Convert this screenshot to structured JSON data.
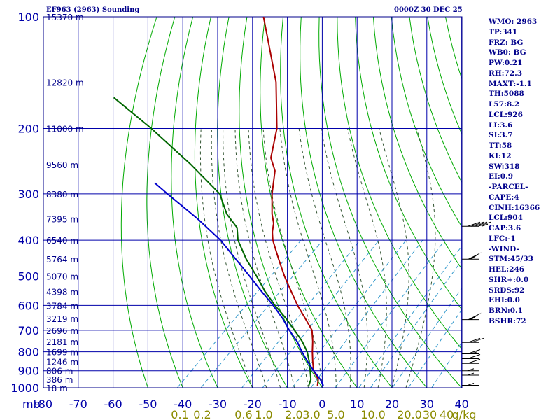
{
  "header": {
    "station": "EF963 (2963) Sounding",
    "time": "0000Z 30 DEC 25"
  },
  "indices": [
    "WMO: 2963",
    "TP:341",
    "FRZ: BG",
    "WB0: BG",
    "PW:0.21",
    "RH:72.3",
    "MAXT:-1.1",
    "TH:5088",
    "L57:8.2",
    "LCL:926",
    "LI:3.6",
    "SI:3.7",
    "TT:58",
    "KI:12",
    "SW:318",
    "EI:0.9",
    "-PARCEL-",
    "CAPE:4",
    "CINH:16366",
    "LCL:904",
    "CAP:3.6",
    "LFC:-1",
    "-WIND-",
    "STM:45/33",
    "HEL:246",
    "SHR+:0.0",
    "SRDS:92",
    "EHI:0.0",
    "BRN:0.1",
    "BSHR:72"
  ],
  "colors": {
    "frame": "#00008b",
    "grid": "#0000aa",
    "dry_adiabat": "#00aa00",
    "moist_adiabat": "#335533",
    "mixing_ratio": "#3399cc",
    "temperature": "#aa0000",
    "dewpoint": "#006600",
    "parcel": "#0000cc",
    "axis_text": "#0000aa",
    "mixing_label_text": "#8b8b00",
    "height_text": "#00008b"
  },
  "chart_data": {
    "type": "line",
    "title": "EF963 (2963) Sounding",
    "subtitle": "0000Z 30 DEC 25",
    "x_axis": {
      "unit_label": "mb",
      "ticks": [
        -80,
        -70,
        -60,
        -50,
        -40,
        -30,
        -20,
        -10,
        0,
        10,
        20,
        30,
        40
      ],
      "range": [
        -80,
        40
      ]
    },
    "y_axis": {
      "scale": "log",
      "ticks": [
        100,
        200,
        300,
        400,
        500,
        600,
        700,
        800,
        900,
        1000
      ],
      "range": [
        100,
        1000
      ]
    },
    "heights": [
      {
        "p": 100,
        "label": "15370 m"
      },
      {
        "p": 150,
        "label": "12820 m"
      },
      {
        "p": 200,
        "label": "11000 m"
      },
      {
        "p": 250,
        "label": "9560 m"
      },
      {
        "p": 300,
        "label": "8380 m"
      },
      {
        "p": 350,
        "label": "7395 m"
      },
      {
        "p": 400,
        "label": "6540 m"
      },
      {
        "p": 450,
        "label": "5764 m"
      },
      {
        "p": 500,
        "label": "5070 m"
      },
      {
        "p": 550,
        "label": "4398 m"
      },
      {
        "p": 600,
        "label": "3784 m"
      },
      {
        "p": 650,
        "label": "3219 m"
      },
      {
        "p": 700,
        "label": "2696 m"
      },
      {
        "p": 750,
        "label": "2181 m"
      },
      {
        "p": 800,
        "label": "1699 m"
      },
      {
        "p": 850,
        "label": "1246 m"
      },
      {
        "p": 900,
        "label": "806 m"
      },
      {
        "p": 950,
        "label": "386 m"
      },
      {
        "p": 1000,
        "label": "18 m"
      }
    ],
    "mixing_ratio_labels": [
      "0.1",
      "0.2",
      "0.6",
      "1.0",
      "2.0",
      "3.0",
      "5.0",
      "10.0",
      "20.0",
      "30",
      "40",
      "g/kg"
    ],
    "series": [
      {
        "key": "temperature",
        "points": [
          [
            987,
            -2
          ],
          [
            950,
            -3.6
          ],
          [
            900,
            -7.5
          ],
          [
            850,
            -10.5
          ],
          [
            800,
            -13.5
          ],
          [
            750,
            -16.5
          ],
          [
            700,
            -20
          ],
          [
            650,
            -25.5
          ],
          [
            600,
            -31.5
          ],
          [
            550,
            -37.5
          ],
          [
            500,
            -44
          ],
          [
            450,
            -50.7
          ],
          [
            420,
            -55
          ],
          [
            400,
            -58
          ],
          [
            380,
            -60.6
          ],
          [
            360,
            -62.8
          ],
          [
            340,
            -66
          ],
          [
            300,
            -72
          ],
          [
            260,
            -78
          ],
          [
            240,
            -83
          ],
          [
            200,
            -90
          ],
          [
            150,
            -104
          ],
          [
            100,
            -127
          ]
        ]
      },
      {
        "key": "dewpoint",
        "points": [
          [
            987,
            -4.5
          ],
          [
            950,
            -5.7
          ],
          [
            900,
            -8.5
          ],
          [
            850,
            -11.5
          ],
          [
            800,
            -15
          ],
          [
            750,
            -19.5
          ],
          [
            700,
            -25
          ],
          [
            650,
            -31
          ],
          [
            600,
            -38
          ],
          [
            550,
            -45
          ],
          [
            500,
            -52
          ],
          [
            450,
            -60
          ],
          [
            400,
            -68
          ],
          [
            370,
            -72
          ],
          [
            340,
            -79
          ],
          [
            300,
            -87
          ],
          [
            250,
            -104
          ],
          [
            200,
            -126
          ],
          [
            165,
            -146
          ]
        ]
      },
      {
        "key": "parcel",
        "points": [
          [
            987,
            -0.3
          ],
          [
            950,
            -3
          ],
          [
            900,
            -7.5
          ],
          [
            850,
            -12
          ],
          [
            800,
            -16.5
          ],
          [
            750,
            -21
          ],
          [
            700,
            -26.5
          ],
          [
            650,
            -32
          ],
          [
            600,
            -38.5
          ],
          [
            550,
            -46
          ],
          [
            500,
            -54
          ],
          [
            450,
            -63
          ],
          [
            400,
            -73
          ],
          [
            350,
            -86
          ],
          [
            300,
            -102
          ],
          [
            280,
            -109
          ]
        ]
      }
    ],
    "wind_barbs": [
      {
        "p": 367,
        "speed_kt": 45
      },
      {
        "p": 450,
        "speed_kt": 50
      },
      {
        "p": 655,
        "speed_kt": 50
      },
      {
        "p": 755,
        "speed_kt": 20
      },
      {
        "p": 810,
        "speed_kt": 15
      },
      {
        "p": 835,
        "speed_kt": 10
      },
      {
        "p": 860,
        "speed_kt": 10
      },
      {
        "p": 900,
        "speed_kt": 5
      },
      {
        "p": 925,
        "speed_kt": 5
      },
      {
        "p": 985,
        "speed_kt": 5
      }
    ],
    "grid": true
  }
}
